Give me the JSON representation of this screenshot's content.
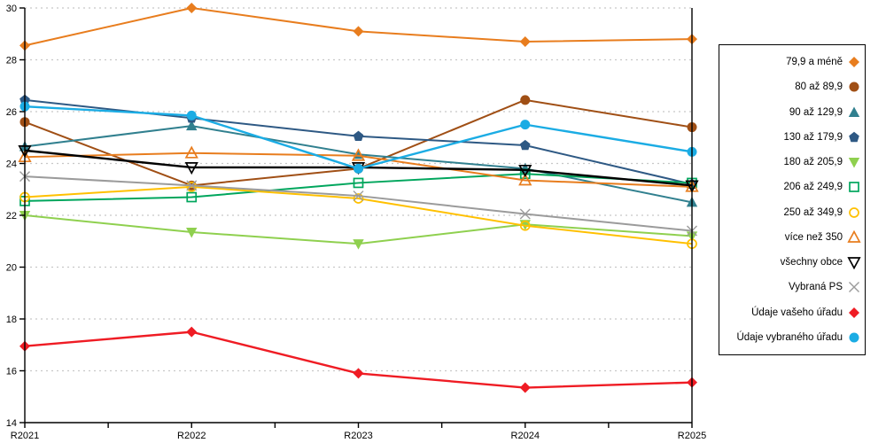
{
  "chart_data": {
    "type": "line",
    "title": "",
    "xlabel": "",
    "ylabel": "",
    "categories": [
      "R2021",
      "R2022",
      "R2023",
      "R2024",
      "R2025"
    ],
    "ylim": [
      14,
      30
    ],
    "yticks": [
      14,
      16,
      18,
      20,
      22,
      24,
      26,
      28,
      30
    ],
    "grid": "horizontal-dashed",
    "grid_color": "#c8c8c8",
    "axis_color": "#000000",
    "legend_position": "right-box",
    "series": [
      {
        "name": "79,9 a méně",
        "marker": "diamond",
        "filled": true,
        "color": "#e87d1e",
        "line_width": 2,
        "values": [
          28.55,
          30.0,
          29.1,
          28.7,
          28.8
        ]
      },
      {
        "name": "80 až 89,9",
        "marker": "circle",
        "filled": true,
        "color": "#a04f15",
        "line_width": 2,
        "values": [
          25.6,
          23.15,
          23.8,
          26.45,
          25.4
        ]
      },
      {
        "name": "90 až 129,9",
        "marker": "triangle-up",
        "filled": true,
        "color": "#31808f",
        "line_width": 2,
        "values": [
          24.65,
          25.45,
          24.35,
          23.8,
          22.5
        ]
      },
      {
        "name": "130 až 179,9",
        "marker": "pentagon",
        "filled": true,
        "color": "#2e5984",
        "line_width": 2,
        "values": [
          26.45,
          25.75,
          25.05,
          24.7,
          23.2
        ]
      },
      {
        "name": "180 až 205,9",
        "marker": "triangle-down",
        "filled": true,
        "color": "#8fd04f",
        "line_width": 2,
        "values": [
          22.0,
          21.35,
          20.9,
          21.65,
          21.2
        ]
      },
      {
        "name": "206 až 249,9",
        "marker": "square",
        "filled": false,
        "color": "#00a65d",
        "line_width": 2,
        "values": [
          22.55,
          22.7,
          23.25,
          23.6,
          23.25
        ]
      },
      {
        "name": "250 až 349,9",
        "marker": "circle",
        "filled": false,
        "color": "#ffc000",
        "line_width": 2,
        "values": [
          22.7,
          23.1,
          22.65,
          21.6,
          20.9
        ]
      },
      {
        "name": "více než 350",
        "marker": "triangle-up",
        "filled": false,
        "color": "#e87d1e",
        "line_width": 2,
        "values": [
          24.25,
          24.4,
          24.3,
          23.35,
          23.1
        ]
      },
      {
        "name": "všechny obce",
        "marker": "triangle-down",
        "filled": false,
        "color": "#000000",
        "line_width": 2.4,
        "values": [
          24.5,
          23.85,
          23.85,
          23.75,
          23.15
        ]
      },
      {
        "name": "Vybraná PS",
        "marker": "x-cross",
        "filled": false,
        "color": "#9b9b9b",
        "line_width": 2,
        "values": [
          23.5,
          23.15,
          22.75,
          22.05,
          21.4
        ]
      },
      {
        "name": "Údaje vašeho úřadu",
        "marker": "diamond",
        "filled": true,
        "color": "#ef1c24",
        "line_width": 2.4,
        "values": [
          16.95,
          17.5,
          15.9,
          15.35,
          15.55
        ]
      },
      {
        "name": "Údaje vybraného úřadu",
        "marker": "circle",
        "filled": true,
        "color": "#1bace4",
        "line_width": 2.4,
        "values": [
          26.2,
          25.85,
          23.8,
          25.5,
          24.45
        ]
      }
    ]
  }
}
